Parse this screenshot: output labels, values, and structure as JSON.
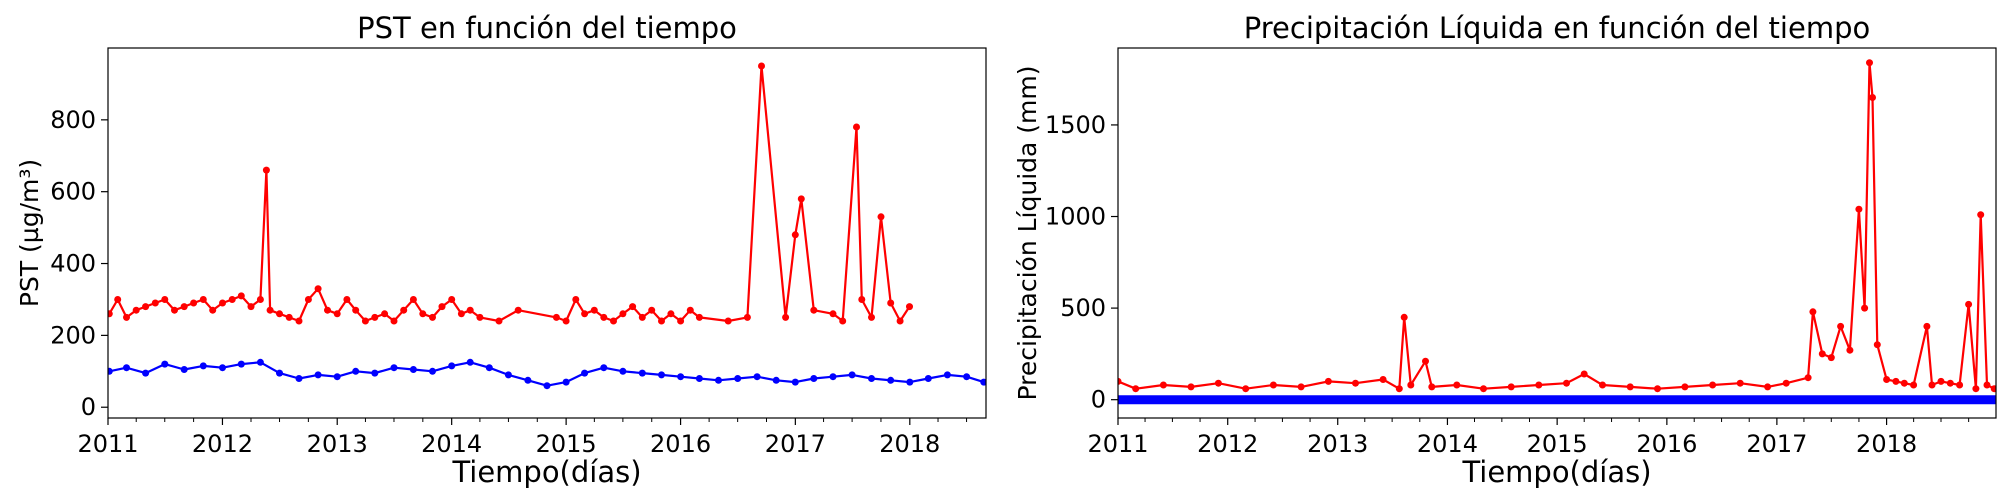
{
  "chart_data": [
    {
      "type": "line",
      "title": "PST en función del tiempo",
      "xlabel": "Tiempo(días)",
      "ylabel": "PST (µg/m³)",
      "xlim": [
        "2011-01-01",
        "2018-09-01"
      ],
      "ylim": [
        -30,
        1000
      ],
      "x_ticks": [
        "2011",
        "2012",
        "2013",
        "2014",
        "2015",
        "2016",
        "2017",
        "2018"
      ],
      "y_ticks": [
        0,
        200,
        400,
        600,
        800
      ],
      "grid": false,
      "legend": "none",
      "series": [
        {
          "color": "#ff0000",
          "x": [
            "2011-01-05",
            "2011-02-01",
            "2011-03-01",
            "2011-04-01",
            "2011-05-01",
            "2011-06-01",
            "2011-07-01",
            "2011-08-01",
            "2011-09-01",
            "2011-10-01",
            "2011-11-01",
            "2011-12-01",
            "2012-01-01",
            "2012-02-01",
            "2012-03-01",
            "2012-04-01",
            "2012-05-01",
            "2012-05-20",
            "2012-06-01",
            "2012-07-01",
            "2012-08-01",
            "2012-09-01",
            "2012-10-01",
            "2012-11-01",
            "2012-12-01",
            "2013-01-01",
            "2013-02-01",
            "2013-03-01",
            "2013-04-01",
            "2013-05-01",
            "2013-06-01",
            "2013-07-01",
            "2013-08-01",
            "2013-09-01",
            "2013-10-01",
            "2013-11-01",
            "2013-12-01",
            "2014-01-01",
            "2014-02-01",
            "2014-03-01",
            "2014-04-01",
            "2014-06-01",
            "2014-08-01",
            "2014-12-01",
            "2015-01-01",
            "2015-02-01",
            "2015-03-01",
            "2015-04-01",
            "2015-05-01",
            "2015-06-01",
            "2015-07-01",
            "2015-08-01",
            "2015-09-01",
            "2015-10-01",
            "2015-11-01",
            "2015-12-01",
            "2016-01-01",
            "2016-02-01",
            "2016-03-01",
            "2016-06-01",
            "2016-08-01",
            "2016-09-15",
            "2016-12-01",
            "2017-01-01",
            "2017-01-20",
            "2017-03-01",
            "2017-05-01",
            "2017-06-01",
            "2017-07-15",
            "2017-08-01",
            "2017-09-01",
            "2017-10-01",
            "2017-11-01",
            "2017-12-01",
            "2017-12-31"
          ],
          "y": [
            260,
            300,
            250,
            270,
            280,
            290,
            300,
            270,
            280,
            290,
            300,
            270,
            290,
            300,
            310,
            280,
            300,
            660,
            270,
            260,
            250,
            240,
            300,
            330,
            270,
            260,
            300,
            270,
            240,
            250,
            260,
            240,
            270,
            300,
            260,
            250,
            280,
            300,
            260,
            270,
            250,
            240,
            270,
            250,
            240,
            300,
            260,
            270,
            250,
            240,
            260,
            280,
            250,
            270,
            240,
            260,
            240,
            270,
            250,
            240,
            250,
            950,
            250,
            480,
            580,
            270,
            260,
            240,
            780,
            300,
            250,
            530,
            290,
            240,
            280
          ]
        },
        {
          "color": "#0000ff",
          "x": [
            "2011-01-05",
            "2011-03-01",
            "2011-05-01",
            "2011-07-01",
            "2011-09-01",
            "2011-11-01",
            "2012-01-01",
            "2012-03-01",
            "2012-05-01",
            "2012-07-01",
            "2012-09-01",
            "2012-11-01",
            "2013-01-01",
            "2013-03-01",
            "2013-05-01",
            "2013-07-01",
            "2013-09-01",
            "2013-11-01",
            "2014-01-01",
            "2014-03-01",
            "2014-05-01",
            "2014-07-01",
            "2014-09-01",
            "2014-11-01",
            "2015-01-01",
            "2015-03-01",
            "2015-05-01",
            "2015-07-01",
            "2015-09-01",
            "2015-11-01",
            "2016-01-01",
            "2016-03-01",
            "2016-05-01",
            "2016-07-01",
            "2016-09-01",
            "2016-11-01",
            "2017-01-01",
            "2017-03-01",
            "2017-05-01",
            "2017-07-01",
            "2017-09-01",
            "2017-11-01",
            "2018-01-01",
            "2018-03-01",
            "2018-05-01",
            "2018-07-01",
            "2018-08-25"
          ],
          "y": [
            100,
            110,
            95,
            120,
            105,
            115,
            110,
            120,
            125,
            95,
            80,
            90,
            85,
            100,
            95,
            110,
            105,
            100,
            115,
            125,
            110,
            90,
            75,
            60,
            70,
            95,
            110,
            100,
            95,
            90,
            85,
            80,
            75,
            80,
            85,
            75,
            70,
            80,
            85,
            90,
            80,
            75,
            70,
            80,
            90,
            85,
            70
          ]
        }
      ]
    },
    {
      "type": "line",
      "title": "Precipitación Líquida en función del tiempo",
      "xlabel": "Tiempo(días)",
      "ylabel": "Precipitación Líquida (mm)",
      "xlim": [
        "2011-01-01",
        "2018-12-31"
      ],
      "ylim": [
        -100,
        1920
      ],
      "x_ticks": [
        "2011",
        "2012",
        "2013",
        "2014",
        "2015",
        "2016",
        "2017",
        "2018"
      ],
      "y_ticks": [
        0,
        500,
        1000,
        1500
      ],
      "grid": false,
      "legend": "none",
      "series": [
        {
          "color": "#ff0000",
          "x": [
            "2011-01-01",
            "2011-03-01",
            "2011-06-01",
            "2011-09-01",
            "2011-12-01",
            "2012-03-01",
            "2012-06-01",
            "2012-09-01",
            "2012-12-01",
            "2013-03-01",
            "2013-06-01",
            "2013-07-25",
            "2013-08-10",
            "2013-09-01",
            "2013-10-20",
            "2013-11-10",
            "2014-02-01",
            "2014-05-01",
            "2014-08-01",
            "2014-11-01",
            "2015-02-01",
            "2015-04-01",
            "2015-06-01",
            "2015-09-01",
            "2015-12-01",
            "2016-03-01",
            "2016-06-01",
            "2016-09-01",
            "2016-12-01",
            "2017-02-01",
            "2017-04-15",
            "2017-05-01",
            "2017-06-01",
            "2017-07-01",
            "2017-08-01",
            "2017-09-01",
            "2017-10-01",
            "2017-10-20",
            "2017-11-05",
            "2017-11-15",
            "2017-12-01",
            "2018-01-01",
            "2018-02-01",
            "2018-03-01",
            "2018-04-01",
            "2018-05-15",
            "2018-06-01",
            "2018-07-01",
            "2018-08-01",
            "2018-09-01",
            "2018-10-01",
            "2018-10-25",
            "2018-11-10",
            "2018-12-01",
            "2018-12-25"
          ],
          "y": [
            100,
            60,
            80,
            70,
            90,
            60,
            80,
            70,
            100,
            90,
            110,
            60,
            450,
            80,
            210,
            70,
            80,
            60,
            70,
            80,
            90,
            140,
            80,
            70,
            60,
            70,
            80,
            90,
            70,
            90,
            120,
            480,
            250,
            230,
            400,
            270,
            1040,
            500,
            1840,
            1650,
            300,
            110,
            100,
            90,
            80,
            400,
            80,
            100,
            90,
            80,
            520,
            60,
            1010,
            80,
            60
          ]
        },
        {
          "color": "#0000ff",
          "x": [
            "2011-01-01",
            "2013-01-01",
            "2015-01-01",
            "2017-01-01",
            "2018-12-31"
          ],
          "y": [
            0,
            0,
            0,
            0,
            0
          ]
        }
      ]
    }
  ]
}
